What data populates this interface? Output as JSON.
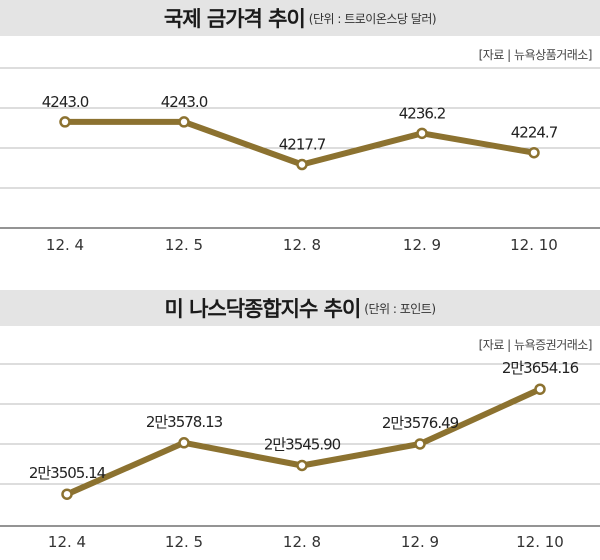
{
  "chart_data": [
    {
      "type": "line",
      "title": "국제 금가격 추이",
      "unit": "(단위 : 트로이온스당 달러)",
      "source": "[자료 | 뉴욕상품거래소]",
      "categories": [
        "12. 4",
        "12. 5",
        "12. 8",
        "12. 9",
        "12. 10"
      ],
      "values": [
        4243.0,
        4243.0,
        4217.7,
        4236.2,
        4224.7
      ],
      "value_labels": [
        "4243.0",
        "4243.0",
        "4217.7",
        "4236.2",
        "4224.7"
      ],
      "ylim": [
        4180,
        4275
      ],
      "grid": true,
      "line_color": "#8c7230"
    },
    {
      "type": "line",
      "title": "미 나스닥종합지수 추이",
      "unit": "(단위 : 포인트)",
      "source": "[자료 | 뉴욕증권거래소]",
      "categories": [
        "12. 4",
        "12. 5",
        "12. 8",
        "12. 9",
        "12. 10"
      ],
      "values": [
        23505.14,
        23578.13,
        23545.9,
        23576.49,
        23654.16
      ],
      "value_labels": [
        "2만3505.14",
        "2만3578.13",
        "2만3545.90",
        "2만3576.49",
        "2만3654.16"
      ],
      "ylim": [
        23460,
        23690
      ],
      "grid": true,
      "line_color": "#8c7230"
    }
  ]
}
